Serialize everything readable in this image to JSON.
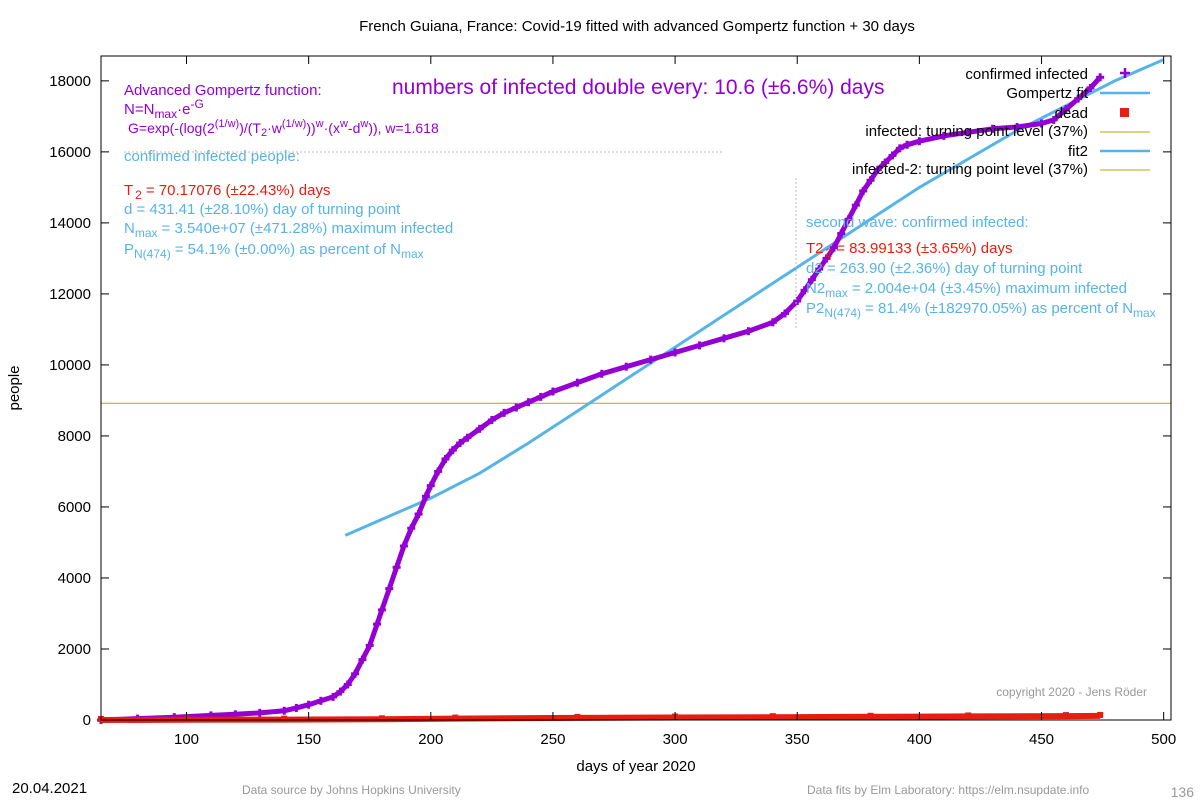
{
  "chart_data": {
    "type": "scatter",
    "title": "French Guiana,  France: Covid-19 fitted with advanced Gompertz function + 30 days",
    "xlabel": "days of year 2020",
    "ylabel": "people",
    "xlim": [
      65,
      503
    ],
    "ylim": [
      0,
      18700
    ],
    "x_ticks": [
      100,
      150,
      200,
      250,
      300,
      350,
      400,
      450,
      500
    ],
    "y_ticks": [
      0,
      2000,
      4000,
      6000,
      8000,
      10000,
      12000,
      14000,
      16000,
      18000
    ],
    "turning_point_level": 8920,
    "legend_position": "top-right",
    "colors": {
      "infected": "#9400d3",
      "fit": "#56b4e9",
      "dead": "#e51e10",
      "level": "#c8a000"
    },
    "series": [
      {
        "name": "confirmed infected",
        "style": "points",
        "x": [
          65,
          80,
          95,
          110,
          120,
          130,
          140,
          145,
          150,
          155,
          160,
          163,
          166,
          169,
          172,
          175,
          178,
          180,
          183,
          186,
          189,
          192,
          195,
          198,
          200,
          203,
          206,
          209,
          212,
          215,
          220,
          225,
          230,
          235,
          240,
          245,
          250,
          260,
          270,
          280,
          290,
          300,
          310,
          320,
          330,
          340,
          345,
          350,
          353,
          356,
          359,
          362,
          365,
          368,
          371,
          374,
          377,
          380,
          383,
          386,
          389,
          392,
          395,
          400,
          410,
          420,
          430,
          440,
          450,
          455,
          460,
          465,
          470,
          474
        ],
        "y": [
          0,
          40,
          80,
          130,
          160,
          200,
          260,
          340,
          430,
          540,
          650,
          800,
          1000,
          1300,
          1700,
          2100,
          2700,
          3100,
          3700,
          4300,
          4900,
          5400,
          5800,
          6300,
          6600,
          7000,
          7350,
          7600,
          7800,
          7950,
          8200,
          8450,
          8650,
          8800,
          8950,
          9100,
          9250,
          9500,
          9750,
          9950,
          10150,
          10350,
          10550,
          10750,
          10950,
          11200,
          11450,
          11800,
          12100,
          12400,
          12700,
          13000,
          13300,
          13700,
          14100,
          14500,
          14900,
          15200,
          15500,
          15700,
          15900,
          16100,
          16200,
          16300,
          16450,
          16550,
          16650,
          16700,
          16800,
          16900,
          17200,
          17500,
          17800,
          18100
        ]
      },
      {
        "name": "Gompertz fit",
        "style": "line",
        "x": [
          165,
          180,
          200,
          220,
          240,
          260,
          280,
          300,
          320,
          340,
          360,
          380,
          400,
          420,
          440,
          460,
          480,
          500
        ],
        "y": [
          5200,
          5650,
          6250,
          6950,
          7800,
          8700,
          9600,
          10500,
          11400,
          12300,
          13200,
          14100,
          15000,
          15800,
          16600,
          17300,
          18000,
          18600
        ]
      },
      {
        "name": "dead",
        "style": "points",
        "x": [
          65,
          100,
          140,
          180,
          210,
          260,
          300,
          340,
          380,
          420,
          460,
          474
        ],
        "y": [
          0,
          5,
          10,
          20,
          40,
          60,
          70,
          80,
          90,
          100,
          110,
          115
        ]
      },
      {
        "name": "infected: turning point level (37%)",
        "style": "line",
        "x": [
          65,
          503
        ],
        "y": [
          8920,
          8920
        ]
      },
      {
        "name": "fit2",
        "style": "line",
        "x": [],
        "y": []
      },
      {
        "name": "infected-2: turning point level (37%)",
        "style": "line",
        "x": [],
        "y": []
      }
    ],
    "annotations": {
      "gompertz_heading": "Advanced Gompertz function:",
      "formula_N": "N=N",
      "formula_N_sub": "max",
      "formula_N_rest": "·e",
      "formula_N_sup": "-G",
      "formula_G_1": "G=exp(-(log(2",
      "formula_G_sup1": "(1/w)",
      "formula_G_2": ")/(T",
      "formula_G_sub2": "2",
      "formula_G_3": "·w",
      "formula_G_sup3": "(1/w)",
      "formula_G_4": "))",
      "formula_G_sup4": "w",
      "formula_G_5": "·(x",
      "formula_G_sup5": "w",
      "formula_G_6": "-d",
      "formula_G_sup6": "w",
      "formula_G_7": ")), w=1.618",
      "double_every": "numbers of infected double every: 10.6 (±6.6%) days",
      "confirmed_heading": "confirmed infected people:",
      "t2_prefix": "T",
      "t2_sub": "2",
      "t2_value": "= 70.17076 (±22.43%) days",
      "d_line": "d = 431.41 (±28.10%) day of turning point",
      "nmax_prefix": "N",
      "nmax_sub": "max",
      "nmax_value": "= 3.540e+07 (±471.28%) maximum infected",
      "p_prefix": "P",
      "p_sub": "N(474)",
      "p_value": "= 54.1% (±0.00%) as percent of N",
      "p_tail_sub": "max",
      "second_heading": "second wave: confirmed infected:",
      "t22_prefix": "T2",
      "t22_sub": "2",
      "t22_value": "= 83.99133 (±3.65%) days",
      "d2_line": "d2 = 263.90 (±2.36%) day of turning point",
      "n2_prefix": "N2",
      "n2_sub": "max",
      "n2_value": "= 2.004e+04 (±3.45%) maximum infected",
      "p2_prefix": "P2",
      "p2_sub": "N(474)",
      "p2_value": "= 81.4% (±182970.05%) as percent of N",
      "p2_tail_sub": "max",
      "copyright": "copyright 2020 - Jens Röder"
    },
    "footer": {
      "date": "20.04.2021",
      "source": "Data source by Johns Hopkins University",
      "fits": "Data fits by Elm Laboratory: https://elm.nsupdate.info",
      "page": "136"
    }
  }
}
